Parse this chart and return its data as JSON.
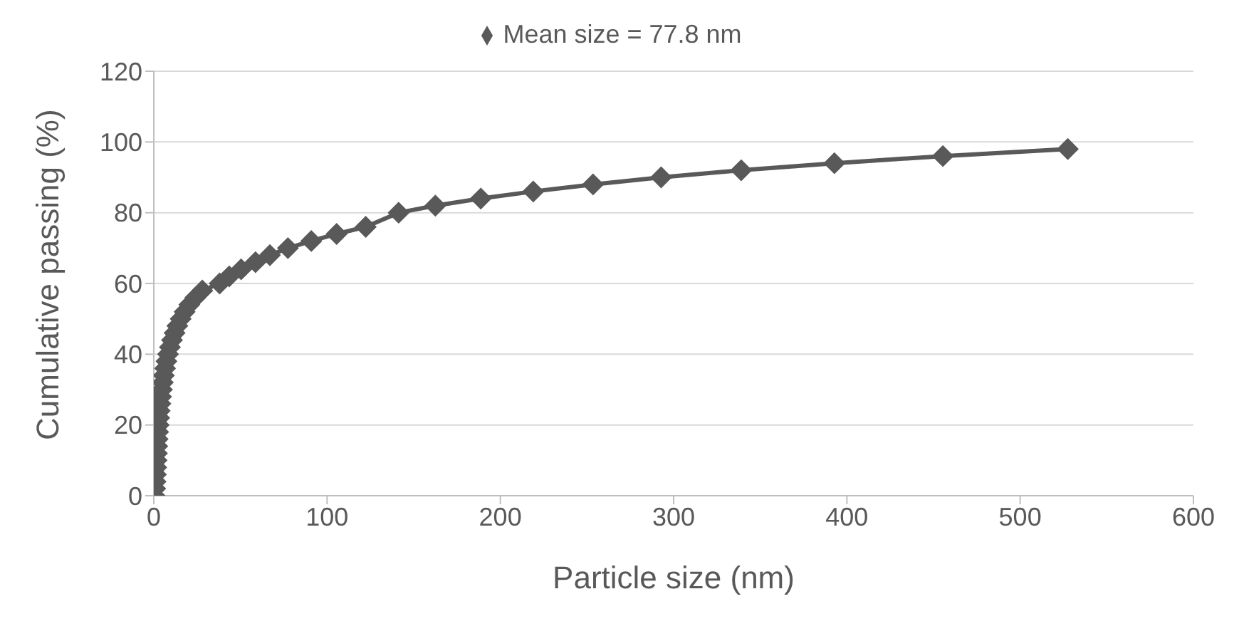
{
  "chart_data": {
    "type": "line",
    "xlabel": "Particle size (nm)",
    "ylabel": "Cumulative passing (%)",
    "xlim": [
      0,
      600
    ],
    "xticks": [
      0,
      100,
      200,
      300,
      400,
      500,
      600
    ],
    "ylim": [
      0,
      120
    ],
    "yticks": [
      0,
      20,
      40,
      60,
      80,
      100,
      120
    ],
    "grid": "y",
    "legend": "top",
    "marker": "diamond",
    "line_style": "solid",
    "series": [
      {
        "name": "Mean size = 77.8 nm",
        "color": "#595959",
        "x": [
          0.5,
          0.8,
          1,
          1.2,
          1.4,
          1.6,
          1.8,
          2,
          2.2,
          2.5,
          2.8,
          3.1,
          3.4,
          3.8,
          4.2,
          4.7,
          5.2,
          5.8,
          6.5,
          7.3,
          8.2,
          9.3,
          10.5,
          12,
          13.6,
          15.5,
          17.8,
          20.5,
          24,
          28,
          38,
          43.5,
          50.4,
          58.7,
          67,
          77.4,
          90.9,
          105.5,
          122.3,
          141.3,
          162.5,
          188.7,
          219,
          253.5,
          292.8,
          339,
          392.8,
          455.4,
          527.5
        ],
        "values": [
          0,
          2,
          4,
          6,
          8,
          10,
          12,
          14,
          16,
          18,
          20,
          22,
          24,
          26,
          28,
          30,
          32,
          34,
          36,
          38,
          40,
          42,
          44,
          46,
          48,
          50,
          52,
          54,
          56,
          58,
          60,
          62,
          64,
          66,
          68,
          70,
          72,
          74,
          76,
          80,
          82,
          84,
          86,
          88,
          90,
          92,
          94,
          96,
          98
        ]
      }
    ]
  }
}
